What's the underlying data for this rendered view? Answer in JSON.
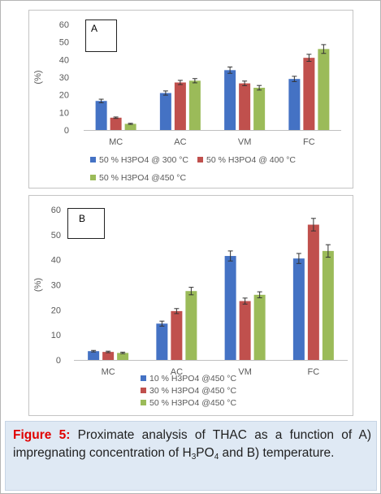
{
  "chart_data": [
    {
      "type": "bar",
      "panel_label": "A",
      "ylabel": "(%)",
      "ylim": [
        0,
        60
      ],
      "yticks": [
        0,
        10,
        20,
        30,
        40,
        50,
        60
      ],
      "categories": [
        "MC",
        "AC",
        "VM",
        "FC"
      ],
      "series": [
        {
          "name": "50 % H3PO4 @ 300 °C",
          "color": "#4472c4",
          "values": [
            16.5,
            21,
            34,
            29
          ],
          "errors": [
            1,
            1.2,
            1.8,
            1.5
          ]
        },
        {
          "name": "50 % H3PO4 @ 400 °C",
          "color": "#c0504d",
          "values": [
            7,
            27,
            26.5,
            41
          ],
          "errors": [
            0.4,
            1.2,
            1.3,
            2
          ]
        },
        {
          "name": "50 % H3PO4 @450 °C",
          "color": "#9bbb59",
          "values": [
            3.5,
            28,
            24,
            46
          ],
          "errors": [
            0.3,
            1.2,
            1.3,
            2.5
          ]
        }
      ],
      "legend_position": "bottom",
      "grid": false
    },
    {
      "type": "bar",
      "panel_label": "B",
      "ylabel": "(%)",
      "ylim": [
        0,
        60
      ],
      "yticks": [
        0,
        10,
        20,
        30,
        40,
        50,
        60
      ],
      "categories": [
        "MC",
        "AC",
        "VM",
        "FC"
      ],
      "series": [
        {
          "name": "10 % H3PO4 @450 °C",
          "color": "#4472c4",
          "values": [
            3.5,
            14.5,
            41.5,
            40.5
          ],
          "errors": [
            0.3,
            1,
            2,
            2
          ]
        },
        {
          "name": "30 % H3PO4 @450 °C",
          "color": "#c0504d",
          "values": [
            3.2,
            19.5,
            23.5,
            54
          ],
          "errors": [
            0.3,
            1,
            1.2,
            2.5
          ]
        },
        {
          "name": "50 % H3PO4 @450 °C",
          "color": "#9bbb59",
          "values": [
            2.8,
            27.5,
            26,
            43.5
          ],
          "errors": [
            0.3,
            1.5,
            1.2,
            2.5
          ]
        }
      ],
      "legend_position": "bottom",
      "grid": false
    }
  ],
  "caption": {
    "label": "Figure 5:",
    "line1": "Proximate analysis of THAC as a function of",
    "line2_before": "A) impregnating concentration of H",
    "sub1": "3",
    "line2_mid": "PO",
    "sub2": "4",
    "line2_after": " and B)",
    "line3": "temperature."
  }
}
